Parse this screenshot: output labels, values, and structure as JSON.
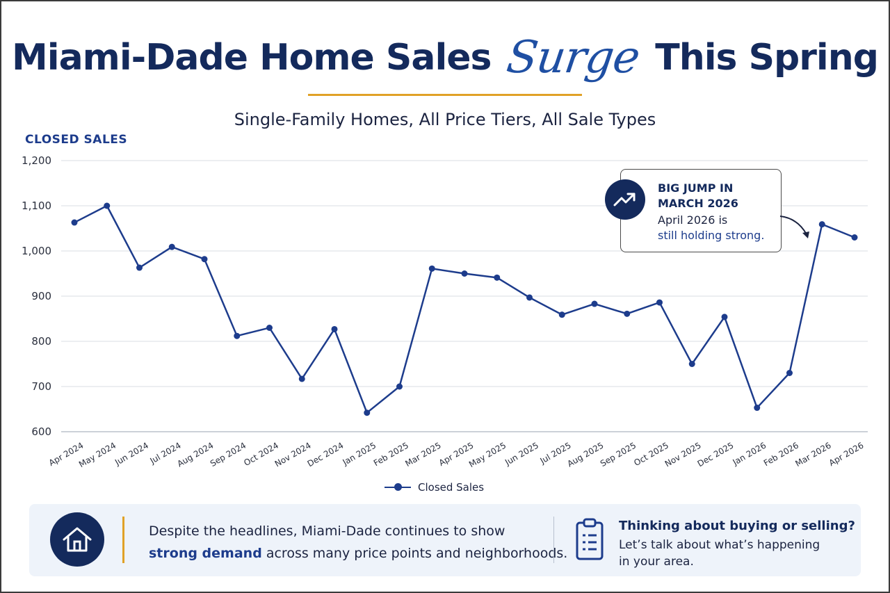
{
  "header": {
    "title_part1": "Miami-Dade Home Sales",
    "title_script": "Surge",
    "title_part2": "This Spring",
    "subtitle": "Single-Family Homes, All Price Tiers, All Sale Types"
  },
  "colors": {
    "navy": "#142a5c",
    "line": "#1d3c8c",
    "gold": "#e0a126",
    "panel": "#eef3fa"
  },
  "chart_data": {
    "type": "line",
    "ylabel": "CLOSED SALES",
    "xlabel": "",
    "ylim": [
      600,
      1200
    ],
    "yticks": [
      600,
      700,
      800,
      900,
      1000,
      1100,
      1200
    ],
    "ytick_labels": [
      "600",
      "700",
      "800",
      "900",
      "1,000",
      "1,100",
      "1,200"
    ],
    "grid": true,
    "legend_position": "bottom-center",
    "categories": [
      "Apr 2024",
      "May 2024",
      "Jun 2024",
      "Jul 2024",
      "Aug 2024",
      "Sep 2024",
      "Oct 2024",
      "Nov 2024",
      "Dec 2024",
      "Jan 2025",
      "Feb 2025",
      "Mar 2025",
      "Apr 2025",
      "May 2025",
      "Jun 2025",
      "Jul 2025",
      "Aug 2025",
      "Sep 2025",
      "Oct 2025",
      "Nov 2025",
      "Dec 2025",
      "Jan 2026",
      "Feb 2026",
      "Mar 2026",
      "Apr 2026"
    ],
    "series": [
      {
        "name": "Closed Sales",
        "values": [
          1063,
          1100,
          963,
          1009,
          982,
          812,
          830,
          717,
          827,
          642,
          700,
          961,
          950,
          941,
          897,
          859,
          883,
          861,
          886,
          750,
          854,
          653,
          730,
          1059,
          1030
        ]
      }
    ]
  },
  "callout": {
    "heading_line1": "BIG JUMP IN",
    "heading_line2": "MARCH 2026",
    "body_line1": "April 2026 is",
    "body_line2": "still holding strong."
  },
  "footer": {
    "text_line1": "Despite the headlines, Miami-Dade continues to show",
    "text_strong": "strong demand",
    "text_rest": " across many price points and neighborhoods.",
    "cta_heading": "Thinking about buying or selling?",
    "cta_line1": "Let’s talk about what’s happening",
    "cta_line2": "in your area."
  },
  "icons": {
    "callout": "trend-up-icon",
    "footer_left": "house-icon",
    "footer_right": "clipboard-icon"
  }
}
